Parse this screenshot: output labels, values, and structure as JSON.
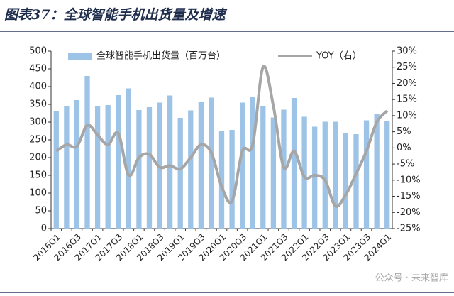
{
  "chart_data": {
    "type": "bar_line",
    "title": "图表37：全球智能手机出货量及增速",
    "categories": [
      "2016Q1",
      null,
      "2016Q3",
      null,
      "2017Q1",
      null,
      "2017Q3",
      null,
      "2018Q1",
      null,
      "2018Q3",
      null,
      "2019Q1",
      null,
      "2019Q3",
      null,
      "2020Q1",
      null,
      "2020Q3",
      null,
      "2021Q1",
      null,
      "2021Q3",
      null,
      "2022Q1",
      null,
      "2022Q3",
      null,
      "2023Q1",
      null,
      "2023Q3",
      null,
      "2024Q1"
    ],
    "series": [
      {
        "name": "全球智能手机出货量（百万台）",
        "color": "#9dc3e6",
        "axis": "y",
        "kind": "bar",
        "values": [
          330,
          345,
          362,
          430,
          345,
          348,
          376,
          395,
          334,
          342,
          355,
          375,
          312,
          333,
          358,
          369,
          275,
          278,
          355,
          372,
          345,
          313,
          335,
          368,
          315,
          287,
          301,
          301,
          269,
          266,
          305,
          323,
          302
        ]
      },
      {
        "name": "YOY（右）",
        "color": "#a6a6a6",
        "axis": "y2",
        "kind": "line",
        "values": [
          -1,
          1,
          0.5,
          7,
          4,
          1,
          4.5,
          -8.5,
          -3,
          -2,
          -6,
          -5.5,
          -6.5,
          -3,
          1,
          -1.5,
          -12,
          -16.5,
          -1,
          1,
          25,
          13,
          -6,
          -1,
          -9,
          -8.5,
          -10,
          -18,
          -14.5,
          -8,
          -1,
          8,
          11.5
        ]
      }
    ],
    "ylim": [
      0,
      500
    ],
    "yticks": [
      0,
      50,
      100,
      150,
      200,
      250,
      300,
      350,
      400,
      450,
      500
    ],
    "y2lim": [
      -25,
      30
    ],
    "y2ticks": [
      {
        "value": -25,
        "label": "-25%"
      },
      {
        "value": -20,
        "label": "-20%"
      },
      {
        "value": -15,
        "label": "-15%"
      },
      {
        "value": -10,
        "label": "-10%"
      },
      {
        "value": -5,
        "label": "-5%"
      },
      {
        "value": 0,
        "label": "0%"
      },
      {
        "value": 5,
        "label": "5%"
      },
      {
        "value": 10,
        "label": "10%"
      },
      {
        "value": 15,
        "label": "15%"
      },
      {
        "value": 20,
        "label": "20%"
      },
      {
        "value": 25,
        "label": "25%"
      },
      {
        "value": 30,
        "label": "30%"
      }
    ],
    "watermark": "公众号 · 未来智库"
  }
}
